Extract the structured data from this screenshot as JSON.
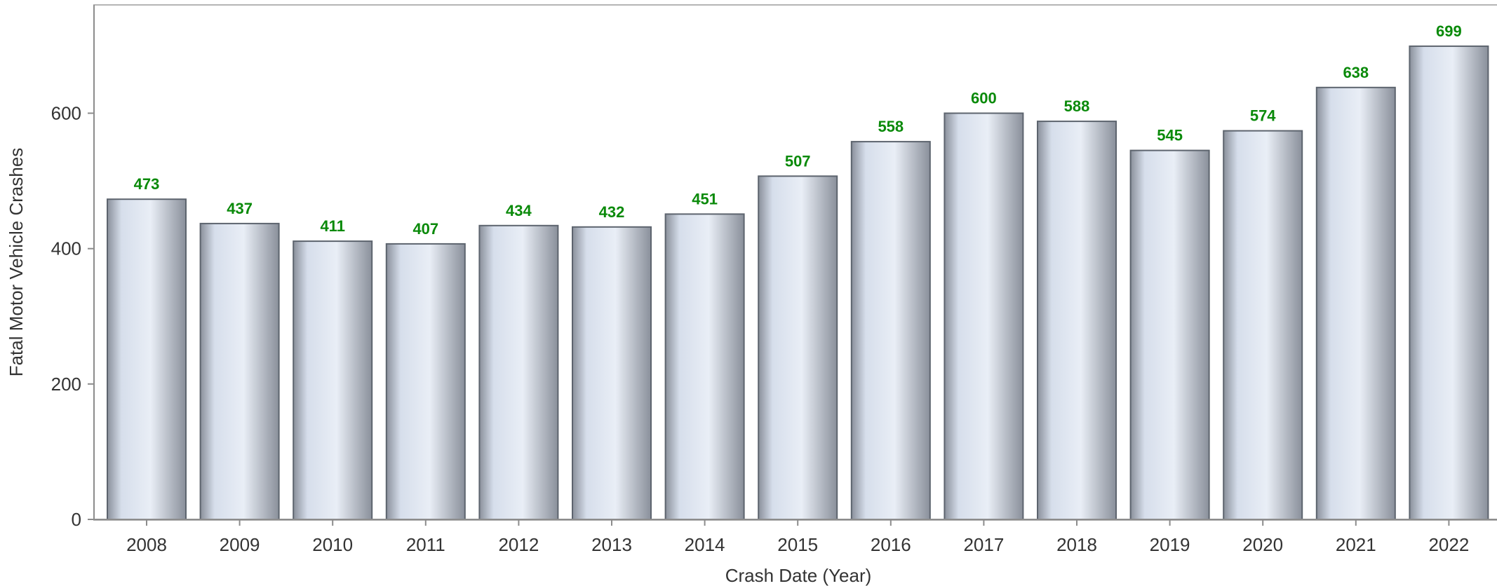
{
  "chart_data": {
    "type": "bar",
    "title": "",
    "xlabel": "Crash Date (Year)",
    "ylabel": "Fatal Motor Vehicle Crashes",
    "categories": [
      "2008",
      "2009",
      "2010",
      "2011",
      "2012",
      "2013",
      "2014",
      "2015",
      "2016",
      "2017",
      "2018",
      "2019",
      "2020",
      "2021",
      "2022"
    ],
    "values": [
      473,
      437,
      411,
      407,
      434,
      432,
      451,
      507,
      558,
      600,
      588,
      545,
      574,
      638,
      699
    ],
    "data_labels": [
      "473",
      "437",
      "411",
      "407",
      "434",
      "432",
      "451",
      "507",
      "558",
      "600",
      "588",
      "545",
      "574",
      "638",
      "699"
    ],
    "ylim": [
      0,
      760
    ],
    "yticks": [
      0,
      200,
      400,
      600
    ],
    "ytick_labels": [
      "0",
      "200",
      "400",
      "600"
    ],
    "grid": false,
    "legend": "none",
    "colors": {
      "bar_edge": "#e9eef6",
      "bar_center": "#d6deeb",
      "bar_dark": "#8a909b",
      "bar_outline": "#5d646e",
      "data_label": "#0a8a0a"
    }
  }
}
